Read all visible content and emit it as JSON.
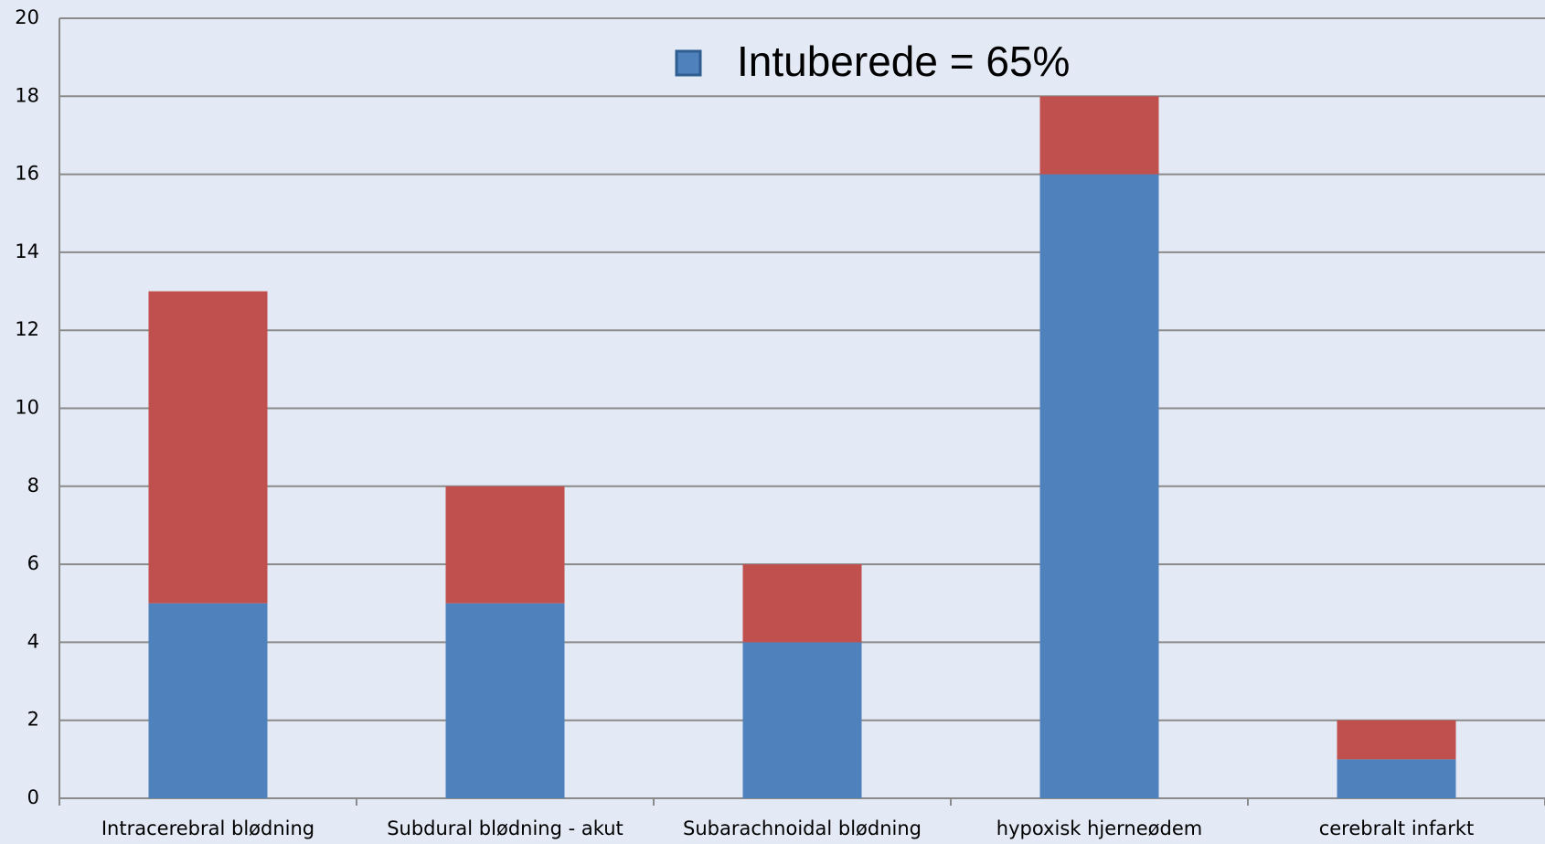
{
  "chart_data": {
    "type": "stacked_bar",
    "categories": [
      "Intracerebral blødning",
      "Subdural blødning - akut",
      "Subarachnoidal blødning",
      "hypoxisk hjerneødem",
      "cerebralt infarkt"
    ],
    "series": [
      {
        "name": "Intuberede = 65%",
        "color": "#4f81bd",
        "values": [
          5,
          5,
          4,
          16,
          1
        ]
      },
      {
        "color": "#c0504d",
        "values": [
          8,
          3,
          2,
          2,
          1
        ]
      }
    ],
    "ylim": [
      0,
      20
    ],
    "yticks": [
      0,
      2,
      4,
      6,
      8,
      10,
      12,
      14,
      16,
      18,
      20
    ],
    "grid": true,
    "legend": "top"
  }
}
